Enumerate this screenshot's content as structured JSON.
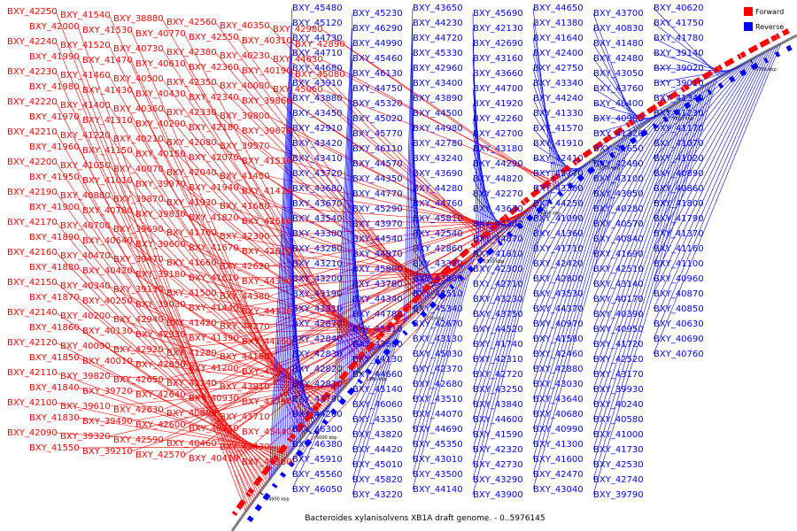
{
  "title": "Bacteroides xylanisolvens XB1A draft genome. - 0..5976145",
  "colors": {
    "forward": "#ff0000",
    "reverse": "#0000ff",
    "axis": "#808080",
    "background": "#ffffff"
  },
  "legend": [
    {
      "key": "forward",
      "label": "Forward",
      "color": "#ff0000"
    },
    {
      "key": "reverse",
      "label": "Reverse",
      "color": "#0000ff"
    }
  ],
  "axis_ticks": [
    "4900 kbp",
    "5000 kbp",
    "5100 kbp",
    "5200 kbp",
    "5300 kbp",
    "5400 kbp",
    "5500 kbp",
    "5600 kbp",
    "5700 kbp"
  ],
  "genes_forward": [
    "BXY_42250",
    "BXY_42000",
    "BXY_42240",
    "BXY_41990",
    "BXY_42230",
    "BXY_41980",
    "BXY_42220",
    "BXY_41970",
    "BXY_42210",
    "BXY_41960",
    "BXY_42200",
    "BXY_41950",
    "BXY_42190",
    "BXY_41900",
    "BXY_42170",
    "BXY_41890",
    "BXY_42160",
    "BXY_41880",
    "BXY_42150",
    "BXY_41870",
    "BXY_42140",
    "BXY_41860",
    "BXY_42120",
    "BXY_41850",
    "BXY_42110",
    "BXY_41840",
    "BXY_42100",
    "BXY_41830",
    "BXY_42090",
    "BXY_41550",
    "BXY_41540",
    "BXY_41530",
    "BXY_41520",
    "BXY_41470",
    "BXY_41460",
    "BXY_41430",
    "BXY_41400",
    "BXY_41310",
    "BXY_41220",
    "BXY_41150",
    "BXY_41050",
    "BXY_41010",
    "BXY_40880",
    "BXY_40780",
    "BXY_40700",
    "BXY_40640",
    "BXY_40470",
    "BXY_40420",
    "BXY_40340",
    "BXY_40250",
    "BXY_40200",
    "BXY_40130",
    "BXY_40090",
    "BXY_40010",
    "BXY_39820",
    "BXY_39720",
    "BXY_39610",
    "BXY_39490",
    "BXY_39320",
    "BXY_39210",
    "BXY_38880",
    "BXY_40770",
    "BXY_40730",
    "BXY_40610",
    "BXY_40500",
    "BXY_40430",
    "BXY_40360",
    "BXY_40290",
    "BXY_40210",
    "BXY_40150",
    "BXY_40070",
    "BXY_39970",
    "BXY_39870",
    "BXY_39830",
    "BXY_39690",
    "BXY_39600",
    "BXY_39470",
    "BXY_39180",
    "BXY_39130",
    "BXY_39030",
    "BXY_42940",
    "BXY_42930",
    "BXY_42920",
    "BXY_42850",
    "BXY_42650",
    "BXY_42640",
    "BXY_42630",
    "BXY_42600",
    "BXY_42590",
    "BXY_42570",
    "BXY_42560",
    "BXY_42550",
    "BXY_42380",
    "BXY_42360",
    "BXY_42350",
    "BXY_42340",
    "BXY_42330",
    "BXY_42180",
    "BXY_42080",
    "BXY_42070",
    "BXY_42040",
    "BXY_41940",
    "BXY_41930",
    "BXY_41820",
    "BXY_41760",
    "BXY_41670",
    "BXY_41660",
    "BXY_41610",
    "BXY_41500",
    "BXY_41440",
    "BXY_41420",
    "BXY_41390",
    "BXY_41280",
    "BXY_41200",
    "BXY_41140",
    "BXY_40930",
    "BXY_40800",
    "BXY_40710",
    "BXY_40460",
    "BXY_40410",
    "BXY_40350",
    "BXY_40310",
    "BXY_40230",
    "BXY_40190",
    "BXY_40000",
    "BXY_39860",
    "BXY_39800",
    "BXY_39670",
    "BXY_39570",
    "BXY_41510",
    "BXY_41450",
    "BXY_41410",
    "BXY_41680",
    "BXY_42660",
    "BXY_42390",
    "BXY_42610",
    "BXY_42620",
    "BXY_44390",
    "BXY_44380",
    "BXY_44330",
    "BXY_44270",
    "BXY_44160",
    "BXY_44150",
    "BXY_43870",
    "BXY_43810",
    "BXY_43790",
    "BXY_43710",
    "BXY_43440",
    "BXY_43430",
    "BXY_43360",
    "BXY_42980",
    "BXY_42890",
    "BXY_44630",
    "BXY_45080",
    "BXY_45060"
  ],
  "genes_reverse": [
    "BXY_45480",
    "BXY_45120",
    "BXY_44730",
    "BXY_44710",
    "BXY_44680",
    "BXY_43910",
    "BXY_43880",
    "BXY_43450",
    "BXY_42910",
    "BXY_43420",
    "BXY_43410",
    "BXY_43720",
    "BXY_43680",
    "BXY_43670",
    "BXY_43540",
    "BXY_43300",
    "BXY_43280",
    "BXY_43210",
    "BXY_43200",
    "BXY_43190",
    "BXY_43310",
    "BXY_42870",
    "BXY_42840",
    "BXY_42830",
    "BXY_42820",
    "BXY_42810",
    "BXY_42790",
    "BXY_44260",
    "BXY_46300",
    "BXY_46380",
    "BXY_45910",
    "BXY_45560",
    "BXY_46050",
    "BXY_45230",
    "BXY_46290",
    "BXY_44990",
    "BXY_45460",
    "BXY_46130",
    "BXY_44750",
    "BXY_45320",
    "BXY_45020",
    "BXY_45770",
    "BXY_46110",
    "BXY_44570",
    "BXY_44350",
    "BXY_44770",
    "BXY_45290",
    "BXY_43970",
    "BXY_44540",
    "BXY_44970",
    "BXY_45800",
    "BXY_43780",
    "BXY_44340",
    "BXY_44780",
    "BXY_45310",
    "BXY_43600",
    "BXY_44130",
    "BXY_44660",
    "BXY_45140",
    "BXY_46060",
    "BXY_43350",
    "BXY_43820",
    "BXY_44420",
    "BXY_45010",
    "BXY_45820",
    "BXY_43220",
    "BXY_43650",
    "BXY_44230",
    "BXY_44720",
    "BXY_45330",
    "BXY_42960",
    "BXY_43400",
    "BXY_43890",
    "BXY_44500",
    "BXY_44980",
    "BXY_42780",
    "BXY_43240",
    "BXY_43690",
    "BXY_44280",
    "BXY_44760",
    "BXY_45810",
    "BXY_42540",
    "BXY_42860",
    "BXY_43330",
    "BXY_43800",
    "BXY_44510",
    "BXY_45340",
    "BXY_42670",
    "BXY_43130",
    "BXY_45030",
    "BXY_42370",
    "BXY_42680",
    "BXY_43510",
    "BXY_44070",
    "BXY_44690",
    "BXY_45350",
    "BXY_43010",
    "BXY_43500",
    "BXY_44140",
    "BXY_45690",
    "BXY_42130",
    "BXY_42690",
    "BXY_43160",
    "BXY_43660",
    "BXY_44700",
    "BXY_41920",
    "BXY_42260",
    "BXY_42700",
    "BXY_43180",
    "BXY_44290",
    "BXY_44820",
    "BXY_42270",
    "BXY_43630",
    "BXY_44300",
    "BXY_44870",
    "BXY_41810",
    "BXY_42300",
    "BXY_42710",
    "BXY_43230",
    "BXY_43750",
    "BXY_44520",
    "BXY_41740",
    "BXY_42310",
    "BXY_42720",
    "BXY_43250",
    "BXY_43840",
    "BXY_44600",
    "BXY_41590",
    "BXY_42320",
    "BXY_42730",
    "BXY_43290",
    "BXY_43900",
    "BXY_44650",
    "BXY_41380",
    "BXY_41640",
    "BXY_42400",
    "BXY_42750",
    "BXY_43340",
    "BXY_44240",
    "BXY_41330",
    "BXY_41570",
    "BXY_41910",
    "BXY_42410",
    "BXY_42770",
    "BXY_43380",
    "BXY_44250",
    "BXY_41090",
    "BXY_41360",
    "BXY_41710",
    "BXY_42420",
    "BXY_42800",
    "BXY_43530",
    "BXY_44370",
    "BXY_40970",
    "BXY_41580",
    "BXY_42460",
    "BXY_42880",
    "BXY_43030",
    "BXY_43640",
    "BXY_40680",
    "BXY_40990",
    "BXY_41300",
    "BXY_41600",
    "BXY_42470",
    "BXY_43040",
    "BXY_43700",
    "BXY_40830",
    "BXY_41480",
    "BXY_42480",
    "BXY_43050",
    "BXY_43760",
    "BXY_40400",
    "BXY_40980",
    "BXY_41320",
    "BXY_41650",
    "BXY_42490",
    "BXY_43100",
    "BXY_43850",
    "BXY_40280",
    "BXY_40570",
    "BXY_40840",
    "BXY_41690",
    "BXY_42510",
    "BXY_43140",
    "BXY_40170",
    "BXY_40390",
    "BXY_40950",
    "BXY_41720",
    "BXY_42520",
    "BXY_43170",
    "BXY_39930",
    "BXY_40240",
    "BXY_40580",
    "BXY_41000",
    "BXY_41730",
    "BXY_42530",
    "BXY_42740",
    "BXY_39790",
    "BXY_40620",
    "BXY_41750",
    "BXY_41780",
    "BXY_39140",
    "BXY_39020",
    "BXY_39010",
    "BXY_41340",
    "BXY_41230",
    "BXY_41170",
    "BXY_41070",
    "BXY_41020",
    "BXY_40890",
    "BXY_40860",
    "BXY_41800",
    "BXY_41790",
    "BXY_41370",
    "BXY_41160",
    "BXY_41100",
    "BXY_40960",
    "BXY_40870",
    "BXY_40850",
    "BXY_40630",
    "BXY_40690",
    "BXY_40760"
  ]
}
